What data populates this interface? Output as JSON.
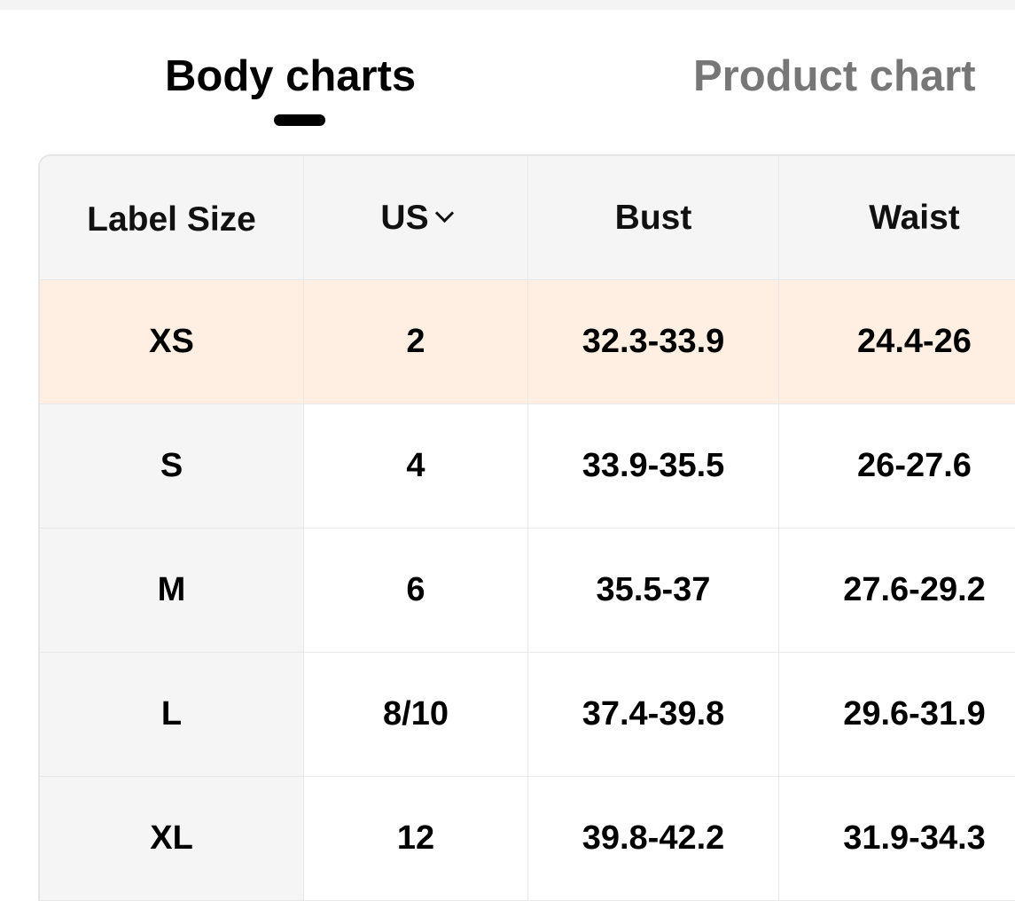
{
  "tabs": [
    {
      "label": "Body charts",
      "active": true
    },
    {
      "label": "Product chart",
      "active": false
    }
  ],
  "colors": {
    "highlight_row": "#feefe2",
    "first_column_bg": "#f5f5f5",
    "active_tab": "#000000",
    "inactive_tab": "#777777"
  },
  "table": {
    "headers": [
      "Label Size",
      "US",
      "Bust",
      "Waist"
    ],
    "unit_selector_icon": "chevron-down-icon",
    "highlighted_row": 0,
    "rows": [
      [
        "XS",
        "2",
        "32.3-33.9",
        "24.4-26"
      ],
      [
        "S",
        "4",
        "33.9-35.5",
        "26-27.6"
      ],
      [
        "M",
        "6",
        "35.5-37",
        "27.6-29.2"
      ],
      [
        "L",
        "8/10",
        "37.4-39.8",
        "29.6-31.9"
      ],
      [
        "XL",
        "12",
        "39.8-42.2",
        "31.9-34.3"
      ]
    ]
  }
}
